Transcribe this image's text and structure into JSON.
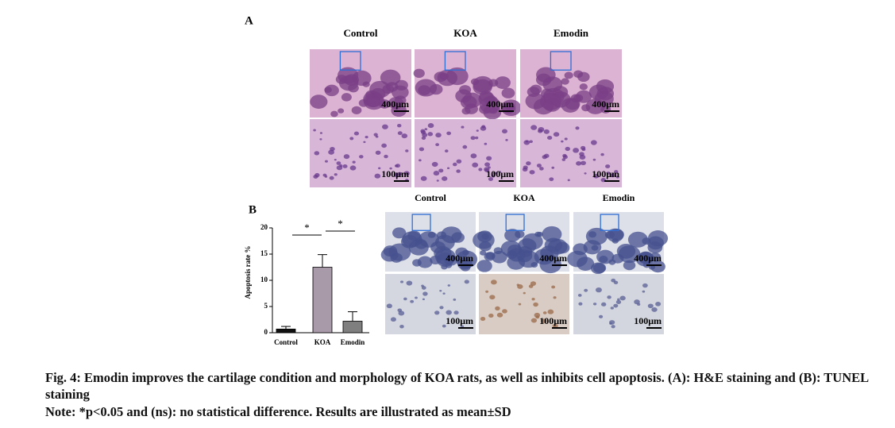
{
  "panel_a": {
    "label": "A",
    "columns": [
      "Control",
      "KOA",
      "Emodin"
    ],
    "scale_bars": [
      "400μm",
      "100μm"
    ]
  },
  "panel_b": {
    "label": "B",
    "columns": [
      "Control",
      "KOA",
      "Emodin"
    ],
    "scale_bars": [
      "400μm",
      "100μm"
    ]
  },
  "chart_data": {
    "type": "bar",
    "y_label": "Apoptosis rate %",
    "categories": [
      "Control",
      "KOA",
      "Emodin"
    ],
    "values": [
      0.7,
      12.5,
      2.2
    ],
    "errors": [
      0.5,
      2.4,
      1.8
    ],
    "colors": [
      "#111111",
      "#a89aa8",
      "#7f7f7f"
    ],
    "ylim": [
      0,
      20
    ],
    "yticks": [
      0,
      5,
      10,
      15,
      20
    ],
    "annotations": [
      "*",
      "*"
    ]
  },
  "caption": {
    "title": "Fig. 4: Emodin improves the cartilage condition and morphology of KOA rats, as well as inhibits cell apoptosis. (A): H&E staining and (B): TUNEL staining",
    "note": "Note: *p<0.05 and (ns): no statistical difference. Results are illustrated as mean±SD"
  }
}
